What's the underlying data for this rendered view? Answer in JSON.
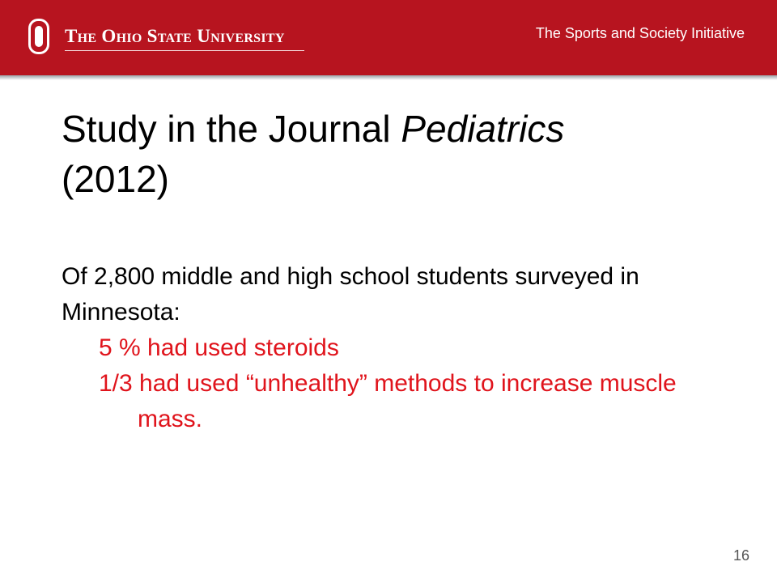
{
  "header": {
    "university": "The Ohio State University",
    "initiative": "The Sports and Society Initiative",
    "brand_color": "#b7141f",
    "logo_icon": "block-o-logo-icon"
  },
  "slide": {
    "title_main": "Study in the Journal ",
    "title_italic": "Pediatrics",
    "title_year": "(2012)",
    "intro": "Of 2,800 middle and high school students surveyed in Minnesota:",
    "points": [
      "5 % had used steroids",
      "1/3 had used “unhealthy” methods to increase muscle mass."
    ],
    "point_color": "#e0141c",
    "number": "16"
  }
}
